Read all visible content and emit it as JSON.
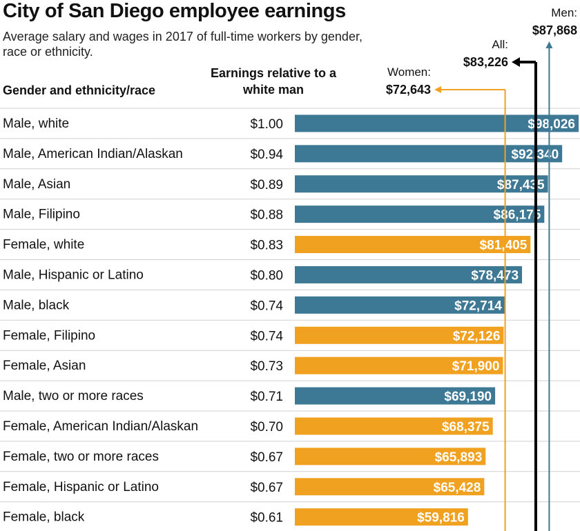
{
  "title": "City of San Diego employee earnings",
  "subtitle": "Average salary and wages in 2017 of full-time workers by gender, race or ethnicity.",
  "columns": {
    "group_header": "Gender and ethnicity/race",
    "ratio_header": "Earnings relative to a white man"
  },
  "colors": {
    "male": "#3d7894",
    "female": "#f0a11f",
    "all_line": "#000000",
    "men_line": "#3d7894",
    "women_line": "#f0a11f",
    "row_divider": "#cfcfcf"
  },
  "chart_data": {
    "type": "bar",
    "orientation": "horizontal",
    "title": "City of San Diego employee earnings",
    "subtitle": "Average salary and wages in 2017 of full-time workers by gender, race or ethnicity.",
    "xlim": [
      0,
      98026
    ],
    "categories": [
      "Male, white",
      "Male, American Indian/Alaskan",
      "Male, Asian",
      "Male, Filipino",
      "Female, white",
      "Male, Hispanic or Latino",
      "Male, black",
      "Female, Filipino",
      "Female, Asian",
      "Male, two or more races",
      "Female, American Indian/Alaskan",
      "Female, two or more races",
      "Female, Hispanic or Latino",
      "Female, black"
    ],
    "gender": [
      "male",
      "male",
      "male",
      "male",
      "female",
      "male",
      "male",
      "female",
      "female",
      "male",
      "female",
      "female",
      "female",
      "female"
    ],
    "values": [
      98026,
      92340,
      87435,
      86175,
      81405,
      78473,
      72714,
      72126,
      71900,
      69190,
      68375,
      65893,
      65428,
      59816
    ],
    "value_labels": [
      "$98,026",
      "$92,340",
      "$87,435",
      "$86,175",
      "$81,405",
      "$78,473",
      "$72,714",
      "$72,126",
      "$71,900",
      "$69,190",
      "$68,375",
      "$65,893",
      "$65,428",
      "$59,816"
    ],
    "ratios": [
      "$1.00",
      "$0.94",
      "$0.89",
      "$0.88",
      "$0.83",
      "$0.80",
      "$0.74",
      "$0.74",
      "$0.73",
      "$0.71",
      "$0.70",
      "$0.67",
      "$0.67",
      "$0.61"
    ],
    "reference_lines": [
      {
        "key": "women",
        "label": "Women:",
        "value": 72643,
        "value_label": "$72,643"
      },
      {
        "key": "all",
        "label": "All:",
        "value": 83226,
        "value_label": "$83,226"
      },
      {
        "key": "men",
        "label": "Men:",
        "value": 87868,
        "value_label": "$87,868"
      }
    ]
  }
}
